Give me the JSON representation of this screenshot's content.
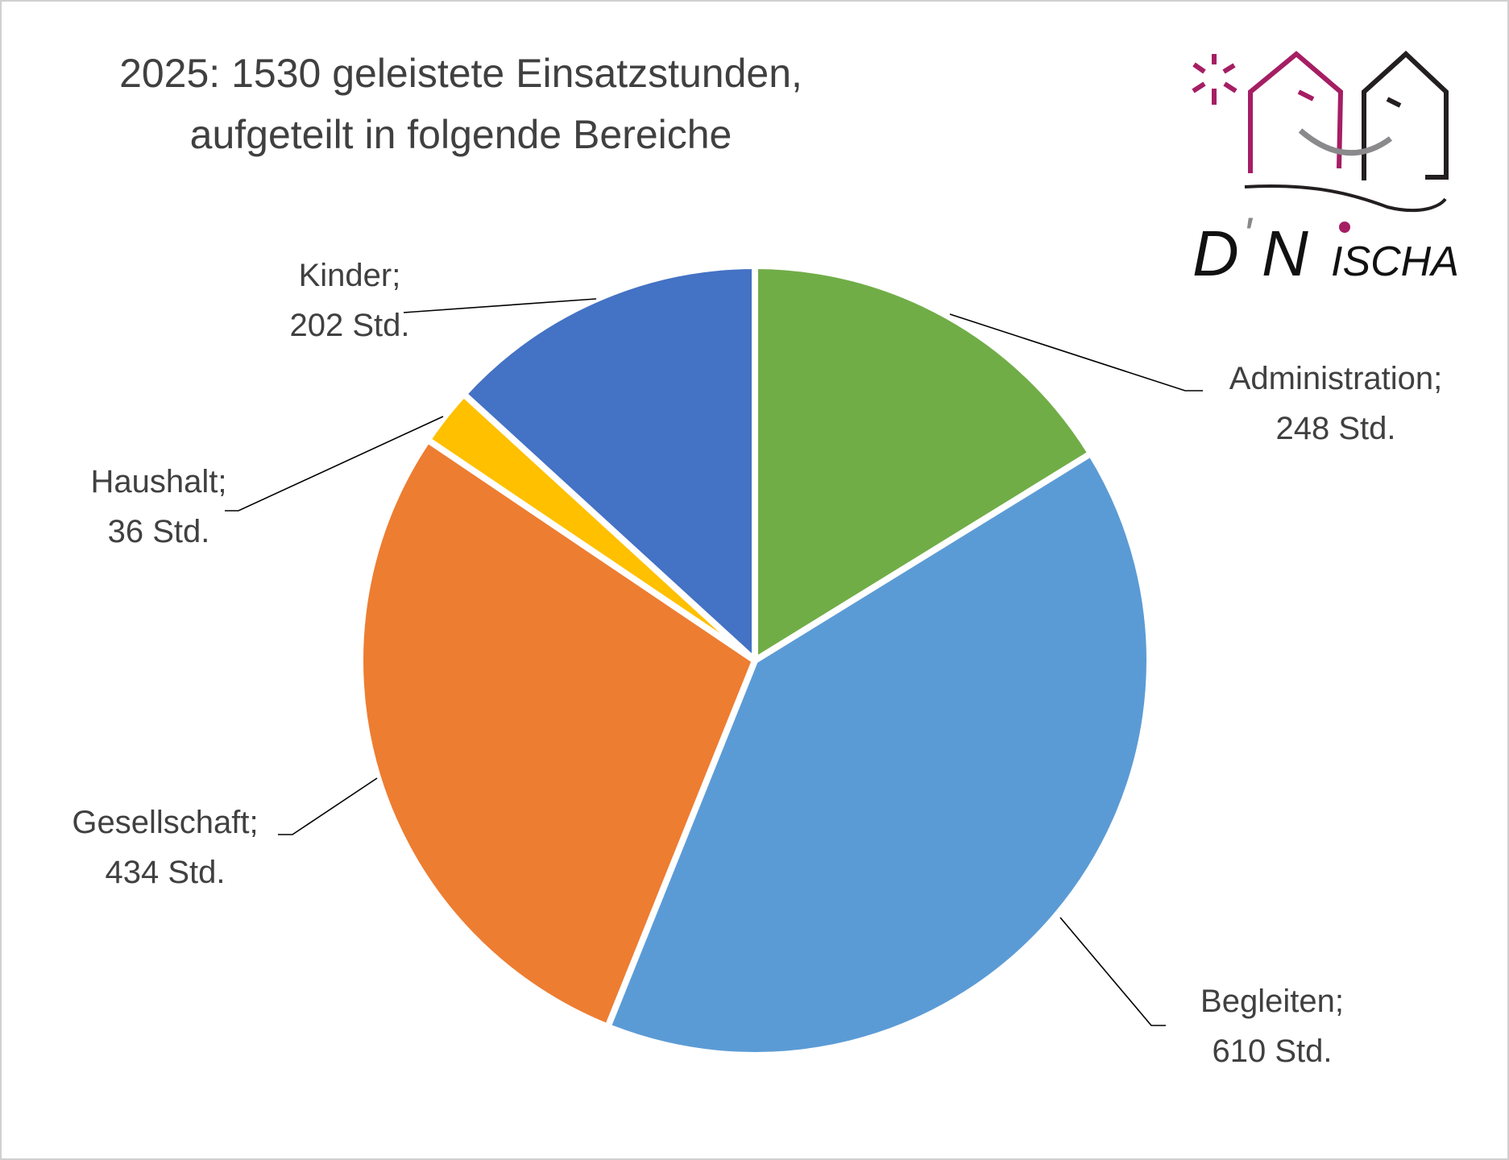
{
  "chart_data": {
    "type": "pie",
    "title_line1": "2025: 1530 geleistete Einsatzstunden,",
    "title_line2": "aufgeteilt in folgende Bereiche",
    "start_angle": "12 o'clock, clockwise",
    "slices": [
      {
        "name": "Administration;",
        "value": 248,
        "label": "248 Std.",
        "color": "#70AD47"
      },
      {
        "name": "Begleiten;",
        "value": 610,
        "label": "610 Std.",
        "color": "#5B9BD5"
      },
      {
        "name": "Gesellschaft;",
        "value": 434,
        "label": "434 Std.",
        "color": "#ED7D31"
      },
      {
        "name": "Haushalt;",
        "value": 36,
        "label": "36 Std.",
        "color": "#FFC000"
      },
      {
        "name": "Kinder;",
        "value": 202,
        "label": "202 Std.",
        "color": "#4472C4"
      }
    ]
  },
  "logo": {
    "text": "D'NISCHA",
    "accent": "#A51E63"
  }
}
